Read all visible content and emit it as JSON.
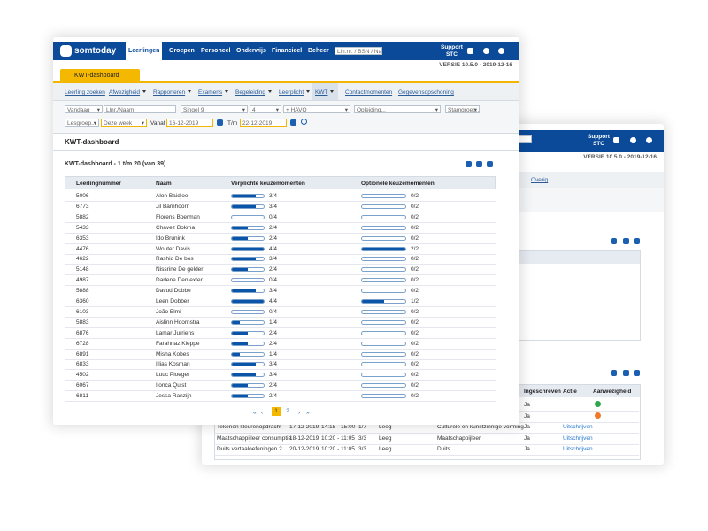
{
  "back": {
    "support": "Support",
    "support_sub": "STC",
    "version": "VERSIE 10.5.0 - 2019-12-16",
    "menu": "Overig",
    "table": {
      "headers": [
        "Ingeschreven",
        "Actie",
        "Aanwezigheid"
      ],
      "rows": [
        {
          "ingeschreven": "Ja",
          "status": "ok"
        },
        {
          "ingeschreven": "Ja",
          "status": "x"
        },
        {
          "naam": "Tekenen kleurenopdracht",
          "datum": "17-12-2019",
          "tijd": "14:15 - 15:00",
          "plaatsen": "1/7",
          "lokaal": "Leeg",
          "vak": "Culturele en kunstzinnige vorming",
          "ingeschreven": "Ja",
          "actie": "Uitschrijven"
        },
        {
          "naam": "Maatschappijleer consumptie",
          "datum": "18-12-2019",
          "tijd": "10:20 - 11:05",
          "plaatsen": "3/3",
          "lokaal": "Leeg",
          "vak": "Maatschappijleer",
          "ingeschreven": "Ja",
          "actie": "Uitschrijven"
        },
        {
          "naam": "Duits vertaaloefeningen 2",
          "datum": "20-12-2019",
          "tijd": "10:20 - 11:05",
          "plaatsen": "3/3",
          "lokaal": "Leeg",
          "vak": "Duits",
          "ingeschreven": "Ja",
          "actie": "Uitschrijven"
        }
      ]
    }
  },
  "front": {
    "logo": "somtoday",
    "nav": [
      "Leerlingen",
      "Groepen",
      "Personeel",
      "Onderwijs",
      "Financieel",
      "Beheer"
    ],
    "search": "Lln.nr. / BSN / Naam",
    "support": "Support",
    "support_sub": "STC",
    "version": "VERSIE 10.5.0 - 2019-12-16",
    "tab": "KWT-dashboard",
    "subnav": [
      "Leerling zoeken",
      "Afwezigheid",
      "Rapporteren",
      "Examens",
      "Begeleiding",
      "Leerplicht",
      "KWT",
      "Contactmomenten",
      "Gegevensopschoning"
    ],
    "filters": {
      "periode": "Vandaag",
      "leerling": "Llnr./Naam",
      "locatie": "Singel 9",
      "leerjaar": "4",
      "niveau": "+ HAVO",
      "opleiding": "Opleiding...",
      "stamgroep": "Stamgroep...",
      "lesgroep": "Lesgroep...",
      "week": "Deze week",
      "vanaf_label": "Vanaf",
      "vanaf": "16-12-2019",
      "tm_label": "T/m",
      "tm": "22-12-2019"
    },
    "heading": "KWT-dashboard",
    "subheading": "KWT-dashboard - 1 t/m 20 (van 39)",
    "table": {
      "headers": [
        "Leerlingnummer",
        "Naam",
        "Verplichte keuzemomenten",
        "Optionele keuzemomenten"
      ],
      "rows": [
        {
          "nr": "5006",
          "naam": "Alon Baidjoe",
          "verplicht": {
            "value": 3,
            "max": 4,
            "label": "3/4"
          },
          "optioneel": {
            "value": 0,
            "max": 2,
            "label": "0/2"
          }
        },
        {
          "nr": "6773",
          "naam": "Jil Barnhoorn",
          "verplicht": {
            "value": 3,
            "max": 4,
            "label": "3/4"
          },
          "optioneel": {
            "value": 0,
            "max": 2,
            "label": "0/2"
          }
        },
        {
          "nr": "5882",
          "naam": "Florens Boerman",
          "verplicht": {
            "value": 0,
            "max": 4,
            "label": "0/4"
          },
          "optioneel": {
            "value": 0,
            "max": 2,
            "label": "0/2"
          }
        },
        {
          "nr": "5433",
          "naam": "Chavez Bokma",
          "verplicht": {
            "value": 2,
            "max": 4,
            "label": "2/4"
          },
          "optioneel": {
            "value": 0,
            "max": 2,
            "label": "0/2"
          }
        },
        {
          "nr": "6353",
          "naam": "Ido Brunink",
          "verplicht": {
            "value": 2,
            "max": 4,
            "label": "2/4"
          },
          "optioneel": {
            "value": 0,
            "max": 2,
            "label": "0/2"
          }
        },
        {
          "nr": "4476",
          "naam": "Wouter Davis",
          "verplicht": {
            "value": 4,
            "max": 4,
            "label": "4/4"
          },
          "optioneel": {
            "value": 2,
            "max": 2,
            "label": "2/2"
          }
        },
        {
          "nr": "4622",
          "naam": "Rashid De bos",
          "verplicht": {
            "value": 3,
            "max": 4,
            "label": "3/4"
          },
          "optioneel": {
            "value": 0,
            "max": 2,
            "label": "0/2"
          }
        },
        {
          "nr": "5148",
          "naam": "Nissrine De gelder",
          "verplicht": {
            "value": 2,
            "max": 4,
            "label": "2/4"
          },
          "optioneel": {
            "value": 0,
            "max": 2,
            "label": "0/2"
          }
        },
        {
          "nr": "4987",
          "naam": "Darlene Den exter",
          "verplicht": {
            "value": 0,
            "max": 4,
            "label": "0/4"
          },
          "optioneel": {
            "value": 0,
            "max": 2,
            "label": "0/2"
          }
        },
        {
          "nr": "5888",
          "naam": "Davud Dobbe",
          "verplicht": {
            "value": 3,
            "max": 4,
            "label": "3/4"
          },
          "optioneel": {
            "value": 0,
            "max": 2,
            "label": "0/2"
          }
        },
        {
          "nr": "6360",
          "naam": "Leen Dobber",
          "verplicht": {
            "value": 4,
            "max": 4,
            "label": "4/4"
          },
          "optioneel": {
            "value": 1,
            "max": 2,
            "label": "1/2"
          }
        },
        {
          "nr": "6103",
          "naam": "João Elmi",
          "verplicht": {
            "value": 0,
            "max": 4,
            "label": "0/4"
          },
          "optioneel": {
            "value": 0,
            "max": 2,
            "label": "0/2"
          }
        },
        {
          "nr": "5883",
          "naam": "Aislinn Hoornstra",
          "verplicht": {
            "value": 1,
            "max": 4,
            "label": "1/4"
          },
          "optioneel": {
            "value": 0,
            "max": 2,
            "label": "0/2"
          }
        },
        {
          "nr": "6876",
          "naam": "Lamar Jurriens",
          "verplicht": {
            "value": 2,
            "max": 4,
            "label": "2/4"
          },
          "optioneel": {
            "value": 0,
            "max": 2,
            "label": "0/2"
          }
        },
        {
          "nr": "6728",
          "naam": "Farahnaz Kleppe",
          "verplicht": {
            "value": 2,
            "max": 4,
            "label": "2/4"
          },
          "optioneel": {
            "value": 0,
            "max": 2,
            "label": "0/2"
          }
        },
        {
          "nr": "6891",
          "naam": "Misha Kobes",
          "verplicht": {
            "value": 1,
            "max": 4,
            "label": "1/4"
          },
          "optioneel": {
            "value": 0,
            "max": 2,
            "label": "0/2"
          }
        },
        {
          "nr": "6833",
          "naam": "Illias Kosman",
          "verplicht": {
            "value": 3,
            "max": 4,
            "label": "3/4"
          },
          "optioneel": {
            "value": 0,
            "max": 2,
            "label": "0/2"
          }
        },
        {
          "nr": "4502",
          "naam": "Luuc Ploeger",
          "verplicht": {
            "value": 3,
            "max": 4,
            "label": "3/4"
          },
          "optioneel": {
            "value": 0,
            "max": 2,
            "label": "0/2"
          }
        },
        {
          "nr": "6067",
          "naam": "Ilonca Quist",
          "verplicht": {
            "value": 2,
            "max": 4,
            "label": "2/4"
          },
          "optioneel": {
            "value": 0,
            "max": 2,
            "label": "0/2"
          }
        },
        {
          "nr": "6811",
          "naam": "Jessa Ranzijn",
          "verplicht": {
            "value": 2,
            "max": 4,
            "label": "2/4"
          },
          "optioneel": {
            "value": 0,
            "max": 2,
            "label": "0/2"
          }
        }
      ]
    },
    "pages": [
      "1",
      "2"
    ]
  }
}
